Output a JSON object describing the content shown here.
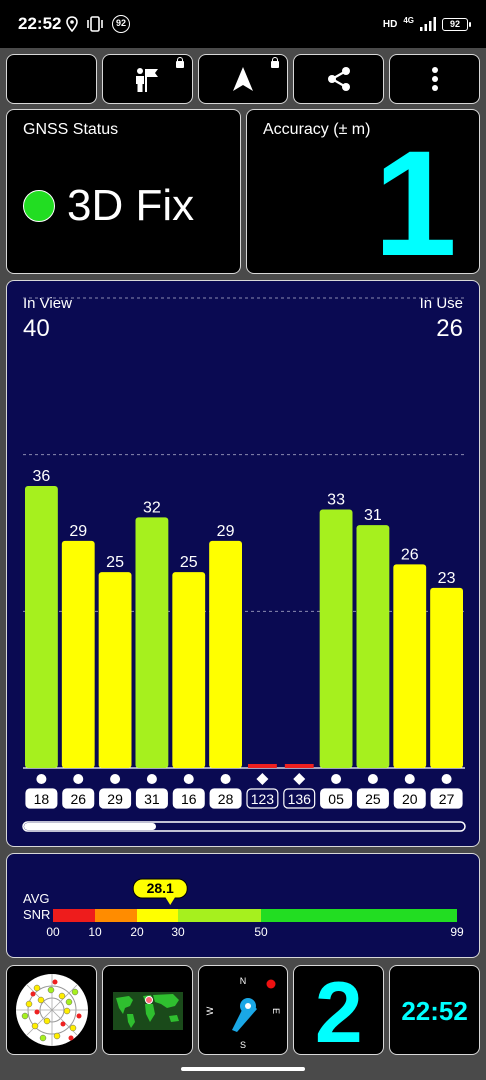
{
  "status_bar": {
    "time": "22:52",
    "notification_badge": "92",
    "net_label": "HD",
    "net_type": "4G",
    "battery": "92",
    "icons": [
      "location-pin-icon",
      "vibrate-icon",
      "signal-icon",
      "battery-icon"
    ]
  },
  "toolbar": {
    "buttons": [
      {
        "name": "night-mode-button",
        "icon": "moon-icon",
        "locked": false
      },
      {
        "name": "poi-button",
        "icon": "person-flag-icon",
        "locked": true
      },
      {
        "name": "navigate-button",
        "icon": "navigation-arrow-icon",
        "locked": true
      },
      {
        "name": "share-button",
        "icon": "share-icon",
        "locked": false
      },
      {
        "name": "more-button",
        "icon": "more-vert-icon",
        "locked": false
      }
    ]
  },
  "gnss": {
    "label": "GNSS Status",
    "fix": "3D Fix",
    "dot_color": "#22dd22"
  },
  "accuracy": {
    "label": "Accuracy (± m)",
    "value": "1",
    "color": "#00ffff"
  },
  "satellites": {
    "in_view_label": "In View",
    "in_view": "40",
    "in_use_label": "In Use",
    "in_use": "26",
    "chart_data": {
      "type": "bar",
      "categories": [
        "18",
        "26",
        "29",
        "31",
        "16",
        "28",
        "123",
        "136",
        "05",
        "25",
        "20",
        "27"
      ],
      "values": [
        36,
        29,
        25,
        32,
        25,
        29,
        0,
        0,
        33,
        31,
        26,
        23
      ],
      "labels": [
        "36",
        "29",
        "25",
        "32",
        "25",
        "29",
        "",
        "",
        "33",
        "31",
        "26",
        "23"
      ],
      "markers": [
        "circle",
        "circle",
        "circle",
        "circle",
        "circle",
        "circle",
        "diamond",
        "diamond",
        "circle",
        "circle",
        "circle",
        "circle"
      ],
      "ylim": [
        0,
        60
      ],
      "grid": true,
      "colors": {
        "good": "#a6f01e",
        "mid": "#ffff00",
        "none": "#ee2020"
      }
    }
  },
  "snr": {
    "avg_label": "AVG",
    "snr_label": "SNR",
    "value": "28.1",
    "scale_ticks": [
      "00",
      "10",
      "20",
      "30",
      "50",
      "99"
    ],
    "segments": [
      {
        "from": 0,
        "to": 10,
        "color": "#ee1c1c"
      },
      {
        "from": 10,
        "to": 20,
        "color": "#ff8c00"
      },
      {
        "from": 20,
        "to": 30,
        "color": "#ffff00"
      },
      {
        "from": 30,
        "to": 50,
        "color": "#a6f01e"
      },
      {
        "from": 50,
        "to": 99,
        "color": "#22dd22"
      }
    ]
  },
  "bottom": {
    "radar_icon": "sky-radar-icon",
    "map_icon": "world-map-icon",
    "compass": {
      "icon": "compass-icon",
      "n": "N",
      "e": "E",
      "s": "S",
      "w": "W"
    },
    "count": "2",
    "clock": "22:52"
  }
}
